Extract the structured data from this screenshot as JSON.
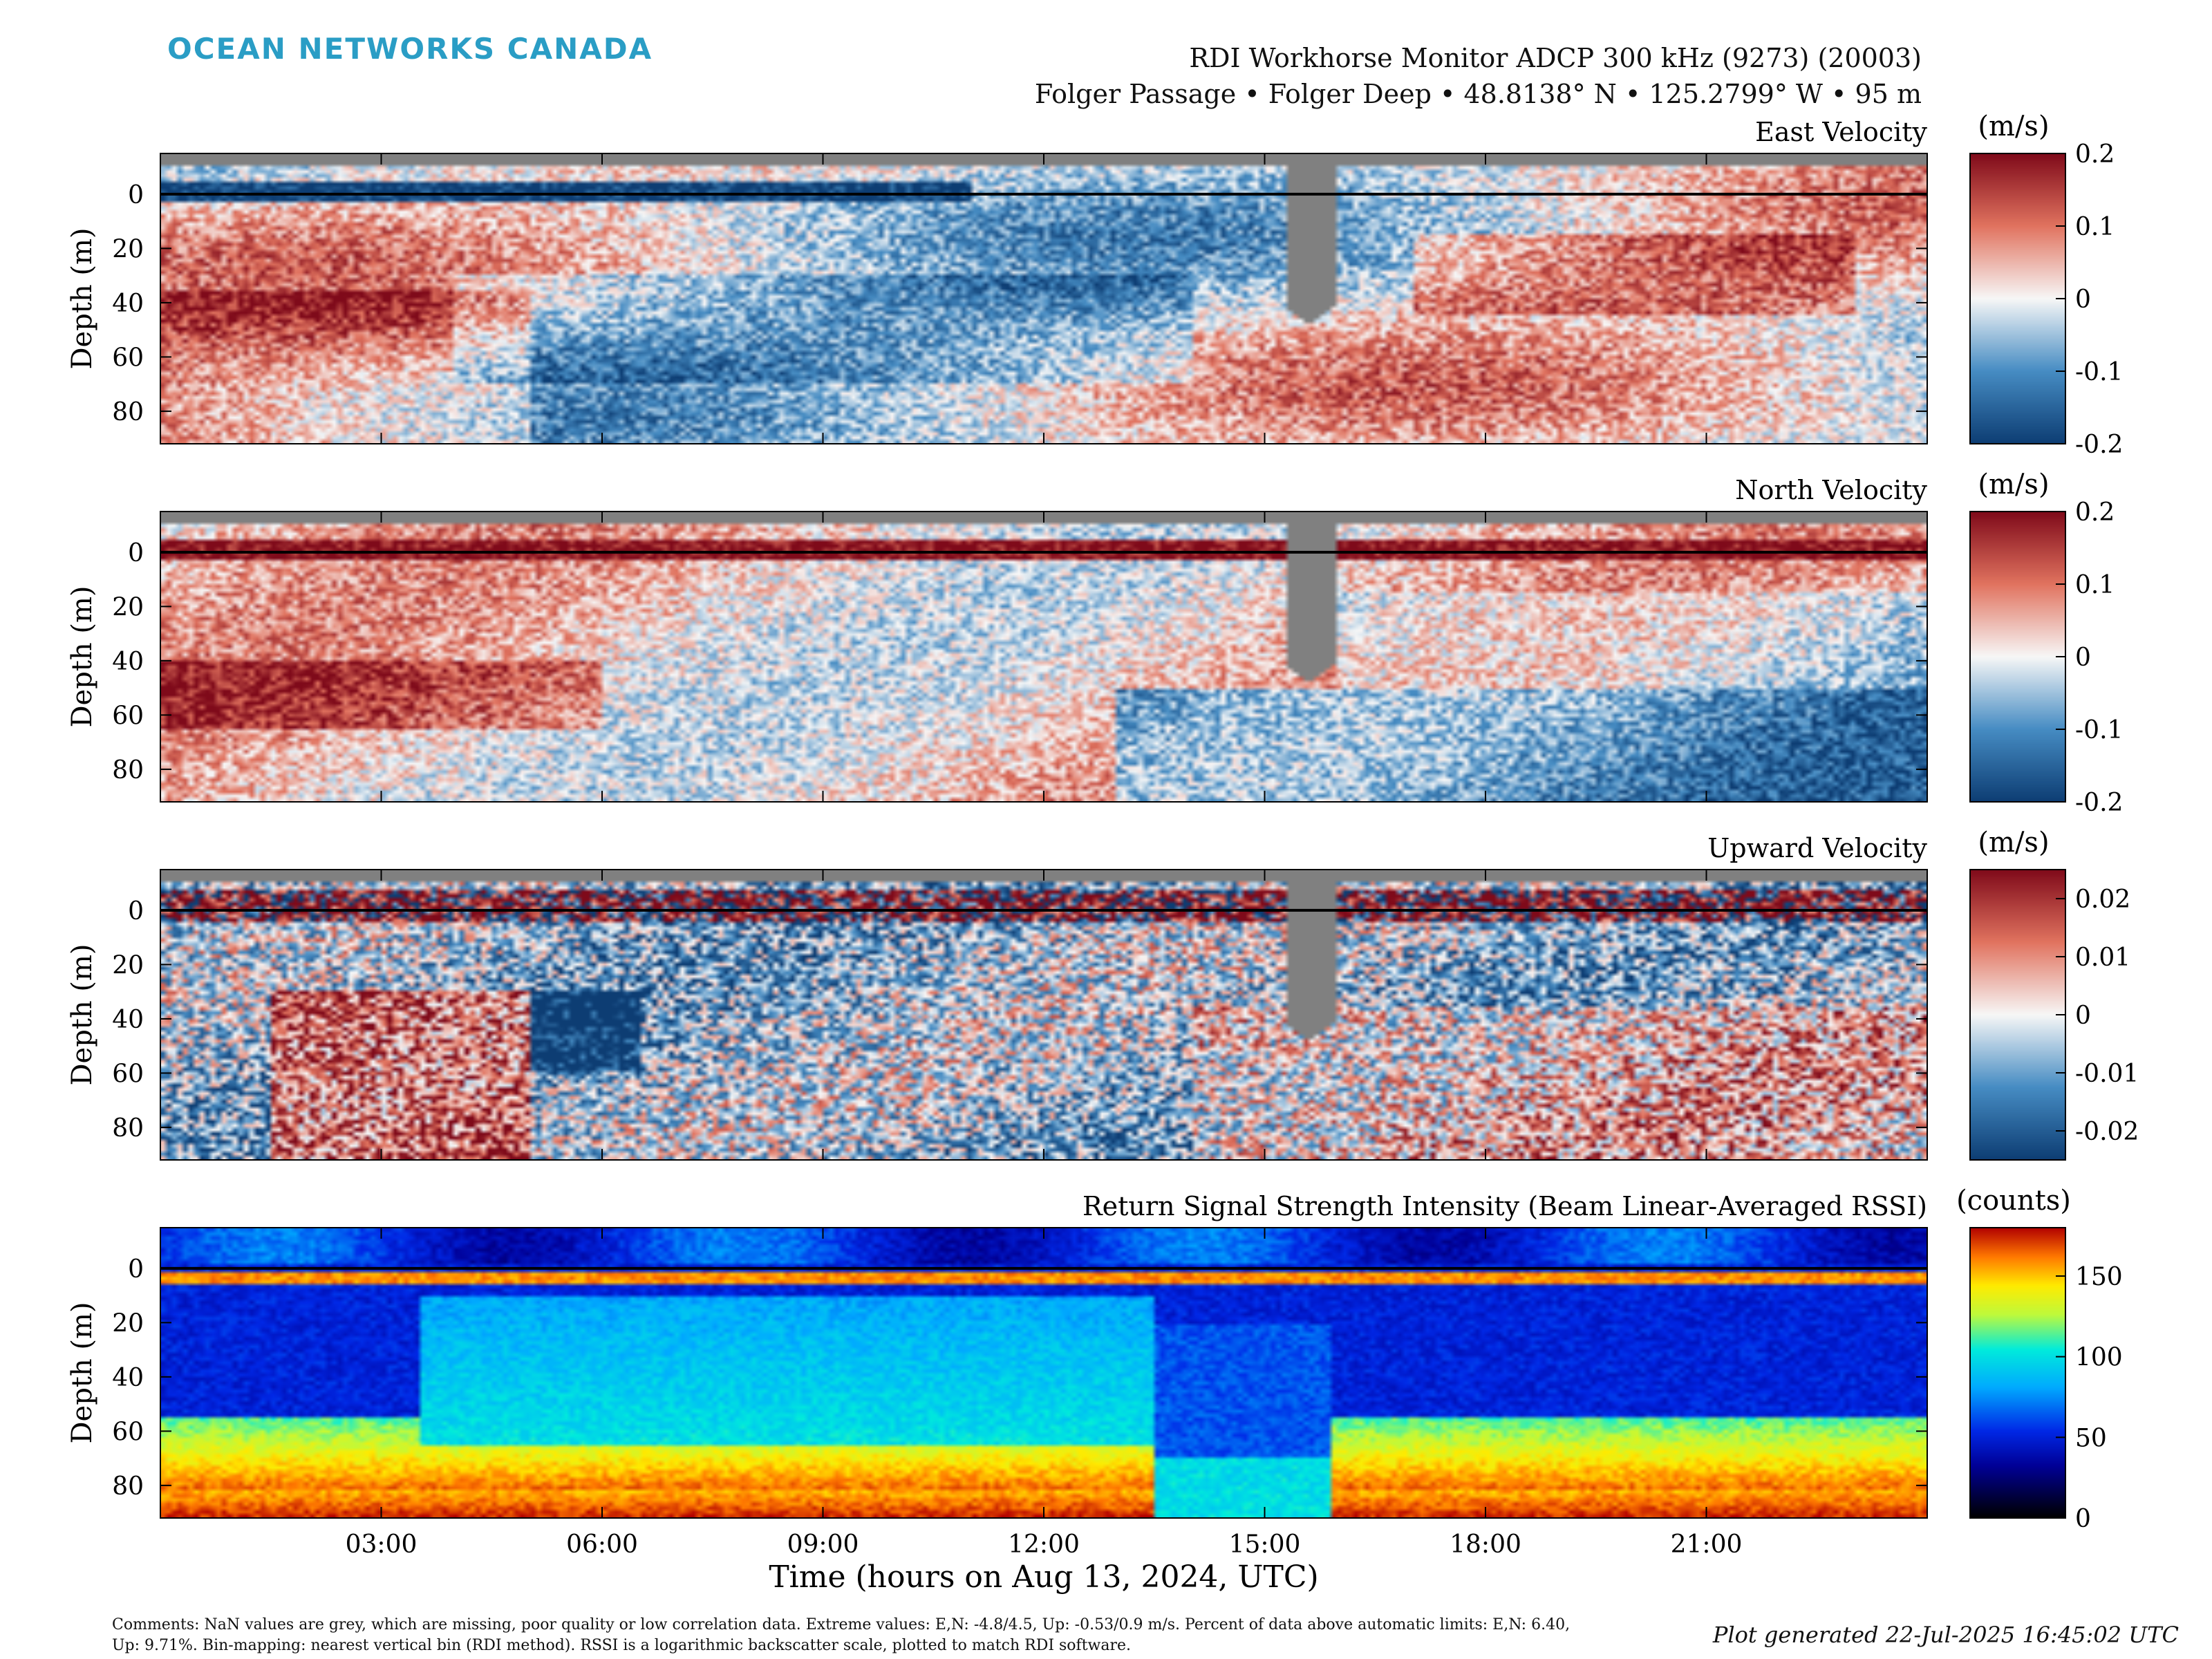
{
  "header": {
    "logo_text": "OCEAN NETWORKS CANADA",
    "title_line1": "RDI Workhorse Monitor ADCP 300 kHz (9273) (20003)",
    "title_line2": "Folger Passage • Folger Deep • 48.8138° N • 125.2799° W • 95 m"
  },
  "footer": {
    "comments": "Comments: NaN values are grey, which are missing, poor quality or low correlation data. Extreme values: E,N: -4.8/4.5, Up: -0.53/0.9 m/s. Percent of data above automatic limits: E,N: 6.40, Up: 9.71%. Bin-mapping: nearest vertical bin (RDI method). RSSI is a logarithmic backscatter scale, plotted to match RDI software.",
    "generated": "Plot generated 22-Jul-2025 16:45:02 UTC"
  },
  "colors": {
    "missing": "#808080",
    "diverging_low": "#0d3d73",
    "diverging_mid": "#f7f7f7",
    "diverging_high": "#7f0a1a",
    "jet_low": "#000000",
    "jet_high": "#b20000"
  },
  "chart_data": [
    {
      "type": "heatmap",
      "title": "East Velocity",
      "xlabel": "",
      "ylabel": "Depth (m)",
      "colorbar_label": "(m/s)",
      "colormap": "diverging red-blue",
      "clim": [
        -0.2,
        0.2
      ],
      "colorbar_ticks": [
        "0.2",
        "0.1",
        "0",
        "-0.1",
        "-0.2"
      ],
      "y_ticks": [
        0,
        20,
        40,
        60,
        80
      ],
      "y_range": [
        -15,
        92
      ],
      "x_range": [
        0,
        24
      ],
      "x_ticks": [
        "03:00",
        "06:00",
        "09:00",
        "12:00",
        "15:00",
        "18:00",
        "21:00"
      ],
      "x_tick_hours": [
        3,
        6,
        9,
        12,
        15,
        18,
        21
      ],
      "missing_wedge": {
        "hour_start": 15.3,
        "hour_end": 15.95,
        "depth_bottom": 48
      }
    },
    {
      "type": "heatmap",
      "title": "North Velocity",
      "xlabel": "",
      "ylabel": "Depth (m)",
      "colorbar_label": "(m/s)",
      "colormap": "diverging red-blue",
      "clim": [
        -0.2,
        0.2
      ],
      "colorbar_ticks": [
        "0.2",
        "0.1",
        "0",
        "-0.1",
        "-0.2"
      ],
      "y_ticks": [
        0,
        20,
        40,
        60,
        80
      ],
      "y_range": [
        -15,
        92
      ],
      "x_range": [
        0,
        24
      ],
      "x_ticks": [
        "03:00",
        "06:00",
        "09:00",
        "12:00",
        "15:00",
        "18:00",
        "21:00"
      ],
      "x_tick_hours": [
        3,
        6,
        9,
        12,
        15,
        18,
        21
      ],
      "missing_wedge": {
        "hour_start": 15.3,
        "hour_end": 15.95,
        "depth_bottom": 48
      }
    },
    {
      "type": "heatmap",
      "title": "Upward Velocity",
      "xlabel": "",
      "ylabel": "Depth (m)",
      "colorbar_label": "(m/s)",
      "colormap": "diverging red-blue",
      "clim": [
        -0.025,
        0.025
      ],
      "colorbar_ticks": [
        "0.02",
        "0.01",
        "0",
        "-0.01",
        "-0.02"
      ],
      "y_ticks": [
        0,
        20,
        40,
        60,
        80
      ],
      "y_range": [
        -15,
        92
      ],
      "x_range": [
        0,
        24
      ],
      "x_ticks": [
        "03:00",
        "06:00",
        "09:00",
        "12:00",
        "15:00",
        "18:00",
        "21:00"
      ],
      "x_tick_hours": [
        3,
        6,
        9,
        12,
        15,
        18,
        21
      ],
      "missing_wedge": {
        "hour_start": 15.3,
        "hour_end": 15.95,
        "depth_bottom": 48
      }
    },
    {
      "type": "heatmap",
      "title": "Return Signal Strength Intensity (Beam Linear-Averaged RSSI)",
      "xlabel": "Time (hours on Aug 13, 2024, UTC)",
      "ylabel": "Depth (m)",
      "colorbar_label": "(counts)",
      "colormap": "jet",
      "clim": [
        0,
        180
      ],
      "colorbar_ticks": [
        "150",
        "100",
        "50",
        "0"
      ],
      "y_ticks": [
        0,
        20,
        40,
        60,
        80
      ],
      "y_range": [
        -15,
        92
      ],
      "x_range": [
        0,
        24
      ],
      "x_ticks": [
        "03:00",
        "06:00",
        "09:00",
        "12:00",
        "15:00",
        "18:00",
        "21:00"
      ],
      "x_tick_hours": [
        3,
        6,
        9,
        12,
        15,
        18,
        21
      ]
    }
  ]
}
